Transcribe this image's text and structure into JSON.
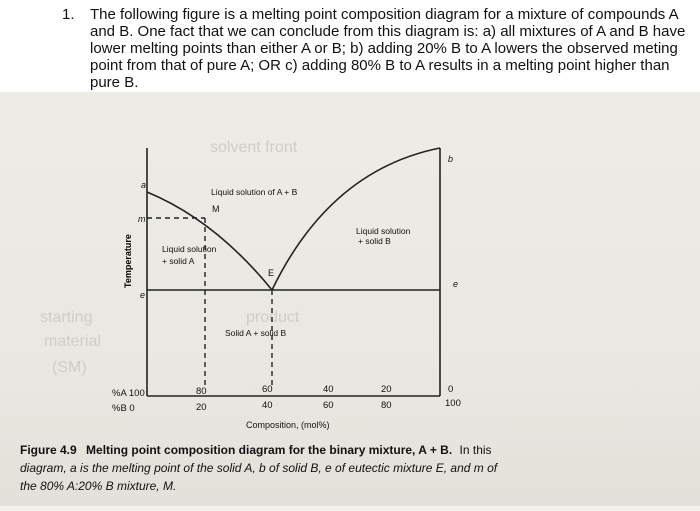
{
  "question": {
    "number": "1.",
    "text": "The following figure is a melting point composition diagram for a mixture of compounds A and B. One fact that we can conclude from this diagram is: a) all mixtures of A and B have lower melting points than either A or B; b) adding 20% B to A lowers the observed meting point from that of pure A; OR c) adding 80% B to A results in a melting point higher than pure B."
  },
  "figure": {
    "ylabel": "Temperature",
    "point_labels": {
      "a": "a",
      "b": "b",
      "e": "e",
      "E": "E",
      "M": "M",
      "m": "m",
      "e_left": "e"
    },
    "regions": {
      "liquid_top": "Liquid solution of A + B",
      "liquid_left_1": "Liquid solution",
      "liquid_left_2": "+ solid A",
      "liquid_right_1": "Liquid solution",
      "liquid_right_2": "+ solid B",
      "solid": "Solid A + solid B"
    },
    "axis": {
      "row_A_label": "%A 100",
      "row_B_label": "%B  0",
      "ticks_A": [
        "80",
        "60",
        "40",
        "20",
        "0"
      ],
      "ticks_B": [
        "20",
        "40",
        "60",
        "80",
        "100"
      ],
      "xlabel": "Composition, (mol%)"
    },
    "caption": {
      "label": "Figure 4.9",
      "title": "Melting point composition diagram for the binary mixture, A + B.",
      "line1_rest": "In this",
      "line2": "diagram, a is the melting point of the solid A, b of solid B, e of eutectic mixture E, and m of",
      "line3": "the 80% A:20% B mixture, M."
    },
    "faint_background_text": [
      "solvent front",
      "starting",
      "material",
      "(SM)",
      "product"
    ]
  },
  "chart_data": {
    "type": "line",
    "title": "",
    "xlabel": "Composition, (mol%)",
    "ylabel": "Temperature",
    "x_label_A": "%A",
    "x_label_B": "%B",
    "x_B_percent": [
      0,
      20,
      40,
      60,
      80,
      100
    ],
    "x_A_percent": [
      100,
      80,
      60,
      40,
      20,
      0
    ],
    "series": [
      {
        "name": "",
        "x_B": [
          0,
          20,
          60
        ],
        "y_relative": [
          0.93,
          0.74,
          0.44
        ]
      },
      {
        "name": "",
        "x_B": [
          60,
          100
        ],
        "y_relative": [
          0.44,
          1.0
        ]
      }
    ],
    "eutectic_B_percent": 60,
    "grid": false
  }
}
